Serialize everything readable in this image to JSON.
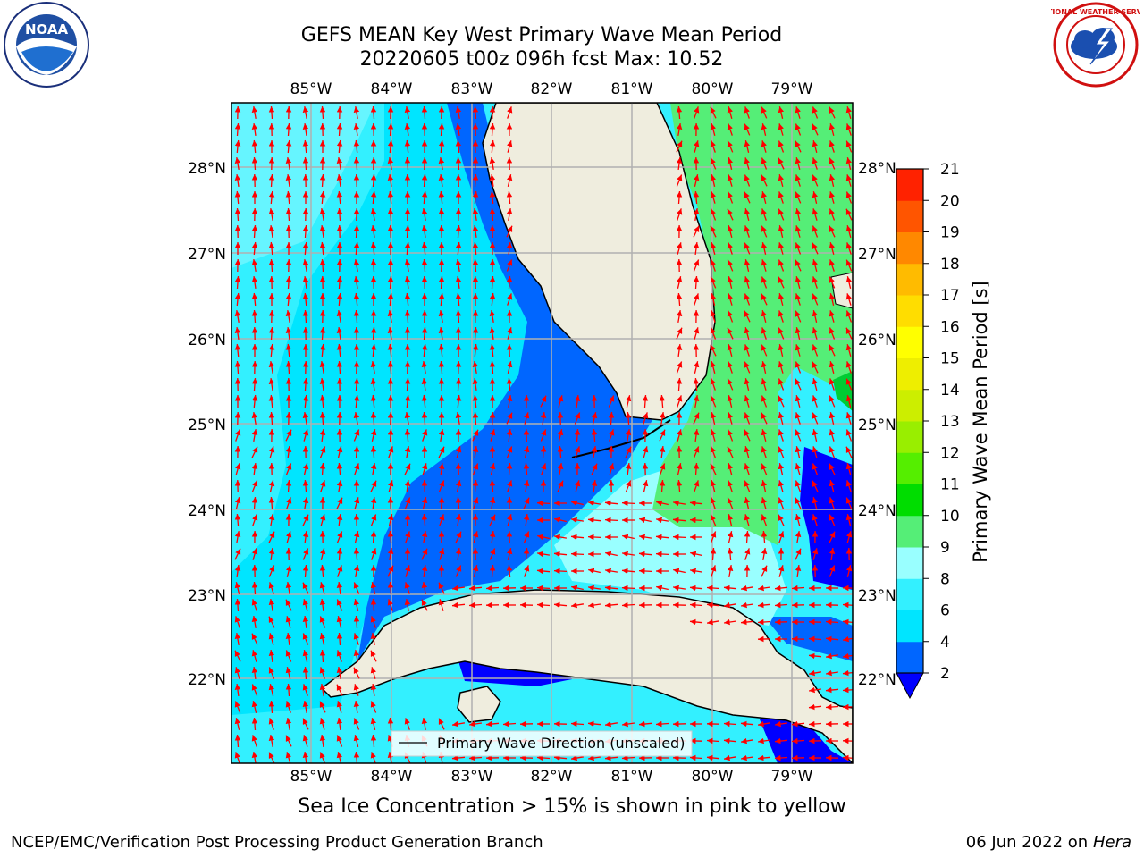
{
  "title": {
    "line1": "GEFS MEAN Key West Primary Wave Mean Period",
    "line2": "20220605 t00z 096h fcst   Max: 10.52"
  },
  "logos": {
    "left": {
      "icon": "noaa-logo",
      "text": "NOAA"
    },
    "right": {
      "icon": "nws-logo",
      "text": "NATIONAL WEATHER SERVICE"
    }
  },
  "map": {
    "lon_labels": [
      "85°W",
      "84°W",
      "83°W",
      "82°W",
      "81°W",
      "80°W",
      "79°W"
    ],
    "lat_labels": [
      "28°N",
      "27°N",
      "26°N",
      "25°N",
      "24°N",
      "23°N",
      "22°N"
    ],
    "legend_label": "Primary Wave Direction (unscaled)",
    "arrow_color": "#ff0000",
    "land_color": "#efedde"
  },
  "colorbar": {
    "label": "Primary Wave Mean Period [s]",
    "ticks": [
      "2",
      "4",
      "6",
      "8",
      "9",
      "10",
      "11",
      "12",
      "13",
      "14",
      "15",
      "16",
      "17",
      "18",
      "19",
      "20",
      "21"
    ],
    "colors": [
      "#0066ff",
      "#00e5ff",
      "#33f0ff",
      "#99ffff",
      "#55ee77",
      "#00dd00",
      "#55ee00",
      "#99ee00",
      "#ccee00",
      "#eeee00",
      "#ffff00",
      "#ffdd00",
      "#ffbb00",
      "#ff8800",
      "#ff5500",
      "#ff2200"
    ],
    "under_color": "#0000ff"
  },
  "notes": {
    "ice": "Sea Ice Concentration > 15% is shown in pink to yellow",
    "footer_left": "NCEP/EMC/Verification Post Processing Product Generation Branch",
    "footer_date": "06 Jun 2022 on",
    "footer_host": "Hera"
  }
}
